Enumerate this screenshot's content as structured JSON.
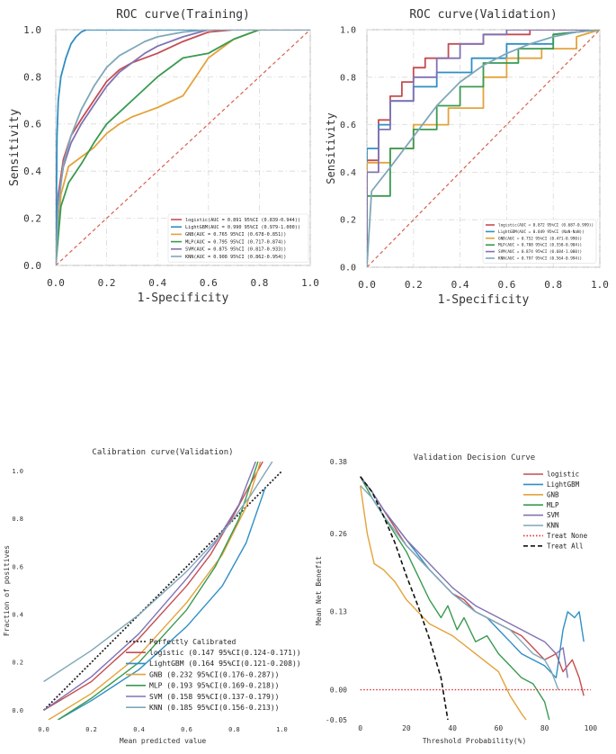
{
  "colors": {
    "logistic": "#c44e52",
    "lightgbm": "#2f8fc4",
    "gnb": "#e3a33b",
    "mlp": "#3a9a50",
    "svm": "#8172b3",
    "knn": "#7fa7b9",
    "diag": "#d9614c",
    "treat_none": "#e03131",
    "treat_all": "#111111"
  },
  "chart_data": [
    {
      "type": "line",
      "id": "roc-training",
      "title": "ROC curve(Training)",
      "xlabel": "1-Specificity",
      "ylabel": "Sensitivity",
      "xlim": [
        0,
        1
      ],
      "ylim": [
        0,
        1
      ],
      "xticks": [
        "0.0",
        "0.2",
        "0.4",
        "0.6",
        "0.8",
        "1.0"
      ],
      "yticks": [
        "0.0",
        "0.2",
        "0.4",
        "0.6",
        "0.8",
        "1.0"
      ],
      "grid": true,
      "legend_position": "bottom-right",
      "series": [
        {
          "key": "logistic",
          "label": "logistic(AUC = 0.891 95%CI (0.839-0.944))",
          "x": [
            0,
            0.01,
            0.03,
            0.06,
            0.1,
            0.15,
            0.2,
            0.25,
            0.3,
            0.4,
            0.5,
            0.6,
            0.7,
            0.8,
            0.9,
            1.0
          ],
          "y": [
            0,
            0.3,
            0.45,
            0.55,
            0.62,
            0.7,
            0.78,
            0.83,
            0.86,
            0.9,
            0.95,
            0.99,
            1.0,
            1.0,
            1.0,
            1.0
          ]
        },
        {
          "key": "lightgbm",
          "label": "LightGBM(AUC = 0.990 95%CI (0.979-1.000))",
          "x": [
            0,
            0.005,
            0.01,
            0.02,
            0.04,
            0.06,
            0.08,
            0.1,
            0.12,
            0.2,
            0.5,
            1.0
          ],
          "y": [
            0,
            0.55,
            0.7,
            0.8,
            0.88,
            0.94,
            0.97,
            0.99,
            1.0,
            1.0,
            1.0,
            1.0
          ]
        },
        {
          "key": "gnb",
          "label": "GNB(AUC = 0.765 95%CI (0.678-0.851))",
          "x": [
            0,
            0.02,
            0.05,
            0.1,
            0.15,
            0.2,
            0.25,
            0.3,
            0.35,
            0.4,
            0.5,
            0.55,
            0.6,
            0.7,
            0.8,
            0.9,
            1.0
          ],
          "y": [
            0,
            0.3,
            0.42,
            0.46,
            0.5,
            0.56,
            0.6,
            0.63,
            0.65,
            0.67,
            0.72,
            0.8,
            0.88,
            0.96,
            1.0,
            1.0,
            1.0
          ]
        },
        {
          "key": "mlp",
          "label": "MLP(AUC = 0.795 95%CI (0.717-0.874))",
          "x": [
            0,
            0.02,
            0.05,
            0.1,
            0.15,
            0.2,
            0.25,
            0.3,
            0.35,
            0.4,
            0.45,
            0.5,
            0.6,
            0.7,
            0.8,
            0.9,
            1.0
          ],
          "y": [
            0,
            0.25,
            0.35,
            0.43,
            0.52,
            0.6,
            0.65,
            0.7,
            0.75,
            0.8,
            0.84,
            0.88,
            0.9,
            0.96,
            1.0,
            1.0,
            1.0
          ]
        },
        {
          "key": "svm",
          "label": "SVM(AUC = 0.875 95%CI (0.817-0.933))",
          "x": [
            0,
            0.01,
            0.03,
            0.06,
            0.1,
            0.15,
            0.2,
            0.25,
            0.3,
            0.35,
            0.4,
            0.5,
            0.6,
            0.7,
            0.8,
            1.0
          ],
          "y": [
            0,
            0.28,
            0.42,
            0.52,
            0.6,
            0.68,
            0.76,
            0.82,
            0.86,
            0.9,
            0.93,
            0.97,
            1.0,
            1.0,
            1.0,
            1.0
          ]
        },
        {
          "key": "knn",
          "label": "KNN(AUC = 0.908 95%CI (0.862-0.954))",
          "x": [
            0,
            0.01,
            0.03,
            0.06,
            0.1,
            0.15,
            0.2,
            0.25,
            0.3,
            0.35,
            0.4,
            0.5,
            0.6,
            0.8,
            1.0
          ],
          "y": [
            0,
            0.25,
            0.43,
            0.55,
            0.66,
            0.76,
            0.84,
            0.89,
            0.92,
            0.95,
            0.97,
            0.99,
            1.0,
            1.0,
            1.0
          ]
        }
      ]
    },
    {
      "type": "line",
      "id": "roc-validation",
      "title": "ROC curve(Validation)",
      "xlabel": "1-Specificity",
      "ylabel": "Sensitivity",
      "xlim": [
        0,
        1
      ],
      "ylim": [
        0,
        1
      ],
      "xticks": [
        "0.0",
        "0.2",
        "0.4",
        "0.6",
        "0.8",
        "1.0"
      ],
      "yticks": [
        "0.0",
        "0.2",
        "0.4",
        "0.6",
        "0.8",
        "1.0"
      ],
      "grid": true,
      "legend_position": "bottom-right",
      "series": [
        {
          "key": "logistic",
          "label": "logistic(AUC = 0.872 95%CI (0.687-0.999))",
          "x": [
            0,
            0,
            0.05,
            0.05,
            0.1,
            0.1,
            0.15,
            0.15,
            0.2,
            0.2,
            0.25,
            0.25,
            0.35,
            0.35,
            0.5,
            0.5,
            0.7,
            0.7,
            1.0
          ],
          "y": [
            0,
            0.45,
            0.45,
            0.62,
            0.62,
            0.72,
            0.72,
            0.78,
            0.78,
            0.84,
            0.84,
            0.88,
            0.88,
            0.94,
            0.94,
            0.98,
            0.98,
            1.0,
            1.0
          ]
        },
        {
          "key": "lightgbm",
          "label": "LightGBM(AUC = 0.849 95%CI (NaN-NaN))",
          "x": [
            0,
            0,
            0.05,
            0.05,
            0.1,
            0.1,
            0.2,
            0.2,
            0.3,
            0.3,
            0.45,
            0.45,
            0.6,
            0.6,
            0.8,
            0.8,
            1.0
          ],
          "y": [
            0,
            0.5,
            0.5,
            0.6,
            0.6,
            0.7,
            0.7,
            0.76,
            0.76,
            0.82,
            0.82,
            0.88,
            0.88,
            0.94,
            0.94,
            0.98,
            1.0
          ]
        },
        {
          "key": "gnb",
          "label": "GNB(AUC = 0.752 95%CI (0.471-0.990))",
          "x": [
            0,
            0,
            0.1,
            0.1,
            0.2,
            0.2,
            0.35,
            0.35,
            0.5,
            0.5,
            0.6,
            0.6,
            0.75,
            0.75,
            0.9,
            0.9,
            1.0
          ],
          "y": [
            0,
            0.44,
            0.44,
            0.5,
            0.5,
            0.6,
            0.6,
            0.67,
            0.67,
            0.8,
            0.8,
            0.88,
            0.88,
            0.92,
            0.92,
            0.97,
            1.0
          ]
        },
        {
          "key": "mlp",
          "label": "MLP(AUC = 0.788 95%CI (0.558-0.984))",
          "x": [
            0,
            0,
            0.1,
            0.1,
            0.2,
            0.2,
            0.3,
            0.3,
            0.4,
            0.4,
            0.5,
            0.5,
            0.65,
            0.65,
            0.8,
            0.8,
            1.0
          ],
          "y": [
            0,
            0.3,
            0.3,
            0.5,
            0.5,
            0.58,
            0.58,
            0.68,
            0.68,
            0.76,
            0.76,
            0.86,
            0.86,
            0.92,
            0.92,
            0.98,
            1.0
          ]
        },
        {
          "key": "svm",
          "label": "SVM(AUC = 0.874 95%CI (0.684-1.000))",
          "x": [
            0,
            0,
            0.05,
            0.05,
            0.1,
            0.1,
            0.2,
            0.2,
            0.3,
            0.3,
            0.4,
            0.4,
            0.5,
            0.5,
            0.6,
            0.6,
            1.0
          ],
          "y": [
            0,
            0.4,
            0.4,
            0.58,
            0.58,
            0.7,
            0.7,
            0.8,
            0.8,
            0.88,
            0.88,
            0.94,
            0.94,
            0.98,
            0.98,
            1.0,
            1.0
          ]
        },
        {
          "key": "knn",
          "label": "KNN(AUC = 0.797 95%CI (0.564-0.994))",
          "x": [
            0,
            0.02,
            0.1,
            0.2,
            0.3,
            0.4,
            0.5,
            0.6,
            0.7,
            0.8,
            0.9,
            1.0
          ],
          "y": [
            0,
            0.32,
            0.42,
            0.55,
            0.68,
            0.78,
            0.85,
            0.9,
            0.94,
            0.97,
            0.99,
            1.0
          ]
        }
      ]
    },
    {
      "type": "line",
      "id": "calibration",
      "title": "Calibration curve(Validation)",
      "xlabel": "Mean predicted value",
      "ylabel": "Fraction of positives",
      "xlim": [
        -0.04,
        1.04
      ],
      "ylim": [
        -0.04,
        1.04
      ],
      "xticks": [
        "0.0",
        "0.2",
        "0.4",
        "0.6",
        "0.8",
        "1.0"
      ],
      "yticks": [
        "0.0",
        "0.2",
        "0.4",
        "0.6",
        "0.8",
        "1.0"
      ],
      "grid": false,
      "legend_position": "bottom-center",
      "reference": {
        "label": "Perfectly Calibrated",
        "x": [
          0,
          1
        ],
        "y": [
          0,
          1
        ]
      },
      "series": [
        {
          "key": "logistic",
          "label": "logistic (0.147 95%CI(0.124-0.171))",
          "x": [
            0,
            0.2,
            0.4,
            0.6,
            0.7,
            0.8,
            0.87,
            0.92
          ],
          "y": [
            0,
            0.12,
            0.3,
            0.52,
            0.65,
            0.82,
            0.95,
            1.04
          ]
        },
        {
          "key": "lightgbm",
          "label": "LightGBM (0.164 95%CI(0.121-0.208))",
          "x": [
            0.06,
            0.2,
            0.4,
            0.6,
            0.75,
            0.85,
            0.93
          ],
          "y": [
            -0.04,
            0.04,
            0.17,
            0.35,
            0.52,
            0.7,
            0.93
          ]
        },
        {
          "key": "gnb",
          "label": "GNB (0.232 95%CI(0.176-0.287))",
          "x": [
            0.02,
            0.2,
            0.4,
            0.6,
            0.75,
            0.85,
            0.91
          ],
          "y": [
            -0.04,
            0.07,
            0.23,
            0.45,
            0.65,
            0.85,
            1.04
          ]
        },
        {
          "key": "mlp",
          "label": "MLP (0.193 95%CI(0.169-0.218))",
          "x": [
            0.06,
            0.2,
            0.4,
            0.6,
            0.72,
            0.82,
            0.9
          ],
          "y": [
            -0.04,
            0.05,
            0.2,
            0.42,
            0.6,
            0.8,
            1.04
          ]
        },
        {
          "key": "svm",
          "label": "SVM (0.158 95%CI(0.137-0.179))",
          "x": [
            0,
            0.2,
            0.4,
            0.6,
            0.72,
            0.82,
            0.89
          ],
          "y": [
            0,
            0.14,
            0.32,
            0.55,
            0.7,
            0.86,
            1.04
          ]
        },
        {
          "key": "knn",
          "label": "KNN (0.185 95%CI(0.156-0.213))",
          "x": [
            0,
            0.2,
            0.4,
            0.6,
            0.75,
            0.87,
            0.96
          ],
          "y": [
            0.12,
            0.25,
            0.4,
            0.58,
            0.74,
            0.9,
            1.04
          ]
        }
      ]
    },
    {
      "type": "line",
      "id": "decision-curve",
      "title": "Validation Decision Curve",
      "xlabel": "Threshold Probability(%)",
      "ylabel": "Mean Net Benefit",
      "xlim": [
        -3,
        102
      ],
      "ylim": [
        -0.05,
        0.38
      ],
      "xticks": [
        "0",
        "20",
        "40",
        "60",
        "80",
        "100"
      ],
      "xtick_values": [
        0,
        20,
        40,
        60,
        80,
        100
      ],
      "yticks": [
        "-0.05",
        "0.00",
        "0.13",
        "0.26",
        "0.38"
      ],
      "ytick_values": [
        -0.05,
        0.0,
        0.13,
        0.26,
        0.38
      ],
      "grid": false,
      "legend_position": "top-right",
      "series": [
        {
          "key": "logistic",
          "label": "logistic",
          "x": [
            0,
            5,
            10,
            20,
            30,
            40,
            45,
            50,
            55,
            60,
            65,
            70,
            75,
            80,
            85,
            88,
            92,
            95,
            97
          ],
          "y": [
            0.355,
            0.33,
            0.3,
            0.24,
            0.2,
            0.16,
            0.15,
            0.13,
            0.12,
            0.11,
            0.1,
            0.09,
            0.07,
            0.05,
            0.06,
            0.03,
            0.05,
            0.02,
            -0.01
          ]
        },
        {
          "key": "lightgbm",
          "label": "LightGBM",
          "x": [
            0,
            5,
            10,
            20,
            30,
            40,
            50,
            55,
            60,
            65,
            70,
            75,
            80,
            85,
            88,
            90,
            93,
            95,
            97
          ],
          "y": [
            0.355,
            0.33,
            0.3,
            0.25,
            0.2,
            0.16,
            0.13,
            0.12,
            0.1,
            0.08,
            0.06,
            0.05,
            0.04,
            0.02,
            0.1,
            0.13,
            0.12,
            0.13,
            0.08
          ]
        },
        {
          "key": "gnb",
          "label": "GNB",
          "x": [
            0,
            3,
            6,
            10,
            15,
            20,
            30,
            40,
            50,
            55,
            60,
            65,
            70,
            72
          ],
          "y": [
            0.34,
            0.26,
            0.21,
            0.2,
            0.18,
            0.15,
            0.11,
            0.09,
            0.06,
            0.045,
            0.03,
            -0.01,
            -0.04,
            -0.05
          ]
        },
        {
          "key": "mlp",
          "label": "MLP",
          "x": [
            0,
            5,
            10,
            20,
            25,
            30,
            35,
            38,
            42,
            45,
            50,
            55,
            60,
            65,
            70,
            75,
            80,
            82
          ],
          "y": [
            0.355,
            0.32,
            0.29,
            0.23,
            0.19,
            0.15,
            0.12,
            0.14,
            0.1,
            0.12,
            0.08,
            0.09,
            0.06,
            0.04,
            0.02,
            0.01,
            -0.02,
            -0.05
          ]
        },
        {
          "key": "svm",
          "label": "SVM",
          "x": [
            0,
            5,
            10,
            20,
            30,
            40,
            50,
            55,
            60,
            65,
            70,
            75,
            80,
            85,
            88,
            90
          ],
          "y": [
            0.355,
            0.33,
            0.3,
            0.25,
            0.21,
            0.17,
            0.14,
            0.13,
            0.12,
            0.11,
            0.1,
            0.09,
            0.08,
            0.06,
            0.07,
            0.02
          ]
        },
        {
          "key": "knn",
          "label": "KNN",
          "x": [
            0,
            5,
            10,
            20,
            30,
            40,
            50,
            55,
            60,
            65,
            70,
            75,
            80,
            83,
            86
          ],
          "y": [
            0.34,
            0.32,
            0.29,
            0.24,
            0.2,
            0.16,
            0.13,
            0.12,
            0.11,
            0.1,
            0.08,
            0.06,
            0.05,
            0.03,
            0.0
          ]
        },
        {
          "key": "treat_none",
          "label": "Treat None",
          "style": "dotted",
          "x": [
            0,
            100
          ],
          "y": [
            0,
            0
          ]
        },
        {
          "key": "treat_all",
          "label": "Treat All",
          "style": "dashed",
          "x": [
            0,
            5,
            10,
            15,
            20,
            25,
            30,
            35,
            38
          ],
          "y": [
            0.355,
            0.33,
            0.29,
            0.245,
            0.19,
            0.14,
            0.085,
            0.02,
            -0.05
          ]
        }
      ]
    }
  ]
}
